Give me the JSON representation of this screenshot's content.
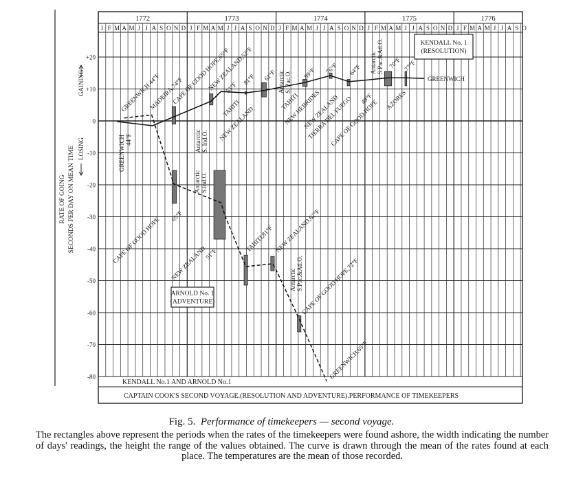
{
  "chart_data": {
    "type": "line",
    "title": "CAPTAIN COOK'S SECOND VOYAGE.(RESOLUTION AND ADVENTURE).PERFORMANCE OF TIMEKEEPERS",
    "subtitle": "KENDALL No.1   AND   ARNOLD No.1",
    "ylabel": [
      "RATE OF GOING",
      "SECONDS PER DAY ON MEAN TIME"
    ],
    "gaining_label": "GAINING",
    "losing_label": "LOSING",
    "ylim": [
      -80,
      27
    ],
    "xlim": [
      1772,
      1776.83
    ],
    "yticks": [
      "+20",
      "+10",
      "0",
      "-10",
      "-20",
      "-30",
      "-40",
      "-50",
      "-60",
      "-70",
      "-80"
    ],
    "ytick_values": [
      20,
      10,
      0,
      -10,
      -20,
      -30,
      -40,
      -50,
      -60,
      -70,
      -80
    ],
    "years": [
      "1772",
      "1773",
      "1774",
      "1775",
      "1776"
    ],
    "months": [
      "J",
      "F",
      "M",
      "A",
      "M",
      "J",
      "J",
      "A",
      "S",
      "O",
      "N",
      "D"
    ],
    "months_shown_last_year": 10,
    "grid": true,
    "series": [
      {
        "name": "Kendall No.1 (Resolution)",
        "box_label": [
          "KENDALL No. 1",
          "(RESOLUTION)"
        ],
        "style": "solid",
        "points": [
          [
            1772.21,
            -0.2
          ],
          [
            1772.61,
            -1.5
          ],
          [
            1772.85,
            1.3
          ],
          [
            1773.27,
            6.2
          ],
          [
            1773.38,
            9.2
          ],
          [
            1773.66,
            8.8
          ],
          [
            1773.86,
            9.5
          ],
          [
            1774.32,
            12.0
          ],
          [
            1774.61,
            14.2
          ],
          [
            1774.82,
            12.3
          ],
          [
            1774.99,
            12.7
          ],
          [
            1775.26,
            13.5
          ],
          [
            1775.46,
            13.5
          ],
          [
            1775.67,
            13.3
          ]
        ],
        "ranges": [
          [
            1772.83,
            1772.87,
            -1.0,
            4.5
          ],
          [
            1773.25,
            1773.29,
            5.0,
            8.5
          ],
          [
            1773.65,
            1773.67,
            8.4,
            9.2
          ],
          [
            1773.84,
            1773.89,
            7.5,
            12.0
          ],
          [
            1774.3,
            1774.35,
            10.8,
            13.0
          ],
          [
            1774.6,
            1774.63,
            13.3,
            15.0
          ],
          [
            1774.8,
            1774.83,
            11.0,
            13.0
          ],
          [
            1775.22,
            1775.3,
            11.0,
            15.5
          ],
          [
            1775.45,
            1775.47,
            11.0,
            15.5
          ]
        ],
        "labels": [
          "GREENWICH 44°F",
          "MADEIRA,74°F",
          "CAPE OF GOOD HOPE,65°F",
          "NEW ZEALAND,52°F",
          "53°F",
          "TAHITI",
          "81°F",
          "NEW ZEALAND",
          "61°F",
          "TAHITI",
          "89°F",
          "NEW HEBRIDES",
          "76°F",
          "NEW ZEALAND",
          "64°F",
          "TIERRA DEL FUEGO",
          "49°F",
          "CAPE OF GOOD HOPE",
          "70°F",
          "AZORES",
          "77°F",
          "GREENWICH",
          "GREENWICH",
          "44°F"
        ],
        "region_labels": [
          [
            "Antarctic",
            "S. Ind.O."
          ],
          [
            "Antarctic",
            "S. Pac.O."
          ],
          [
            "Antarctic",
            "S.Pac.&Atl.O."
          ]
        ]
      },
      {
        "name": "Arnold No.1 (Adventure)",
        "box_label": [
          "ARNOLD No. 1",
          "(ADVENTURE)"
        ],
        "style": "dashed",
        "points": [
          [
            1772.29,
            0.9
          ],
          [
            1772.6,
            1.9
          ],
          [
            1772.85,
            -19.8
          ],
          [
            1773.38,
            -25.6
          ],
          [
            1773.43,
            -30.0
          ],
          [
            1773.66,
            -45.6
          ],
          [
            1773.96,
            -44.7
          ],
          [
            1773.99,
            -46.0
          ],
          [
            1774.27,
            -62.6
          ],
          [
            1774.57,
            -81.5
          ]
        ],
        "ranges": [
          [
            1772.83,
            1772.88,
            -25.8,
            -15.5
          ],
          [
            1773.3,
            1773.43,
            -37.0,
            -15.5
          ],
          [
            1773.64,
            1773.68,
            -51.4,
            -42.0
          ],
          [
            1773.94,
            1773.98,
            -46.9,
            -42.4
          ],
          [
            1774.24,
            1774.28,
            -66.0,
            -61.0
          ]
        ],
        "labels": [
          "CAPE OF GOOD HOPE",
          "65°F",
          "NEW ZEALAND",
          "51°F",
          "TAHITI,81°F",
          "NEW ZEALAND,62°F",
          "CAPE OF GOOD HOPE,72°F",
          "GREENWICH,65°F"
        ],
        "region_labels": [
          [
            "Antarctic",
            "S.Ind.O."
          ],
          [
            "Antarctic",
            "S.Pac.&Atl.O."
          ]
        ]
      }
    ]
  },
  "caption": {
    "fig": "Fig. 5.",
    "title": "Performance of timekeepers — second voyage.",
    "text": "The rectangles above represent the periods when the rates of the timekeepers were found ashore, the width indicating the number of days' readings, the height the range of the values obtained. The curve is drawn through the mean of the rates found at each place. The temperatures are the mean of those recorded."
  }
}
